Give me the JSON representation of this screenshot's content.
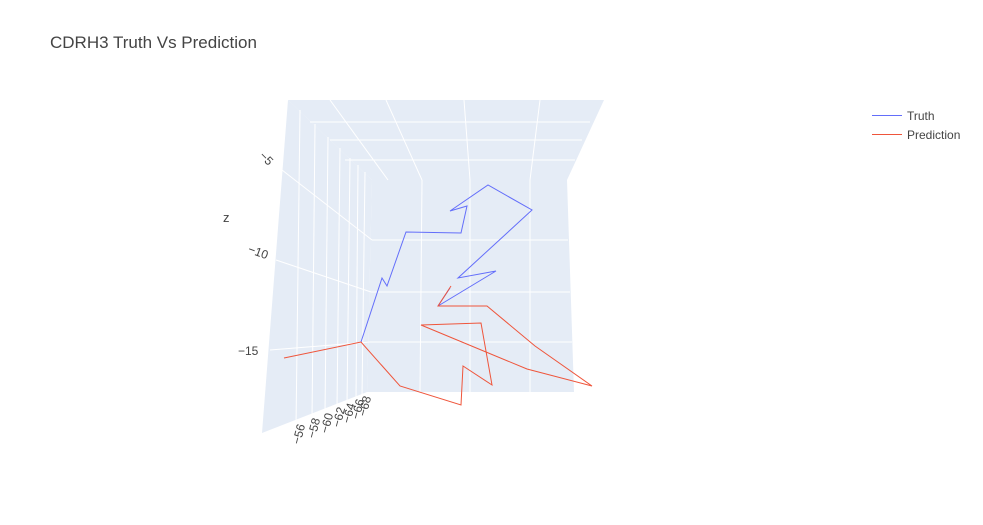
{
  "title": "CDRH3 Truth Vs Prediction",
  "chart_data": {
    "type": "line3d",
    "title": "CDRH3 Truth Vs Prediction",
    "zlabel": "z",
    "z_ticks": [
      "−5",
      "−10",
      "−15"
    ],
    "y_ticks": [
      "−56",
      "−58",
      "−60",
      "−62",
      "−64",
      "−66",
      "−68"
    ],
    "legend_position": "top-right",
    "series": [
      {
        "name": "Truth",
        "color": "#636efa",
        "points": [
          [
            488,
            185
          ],
          [
            532,
            210
          ],
          [
            458,
            278
          ],
          [
            496,
            271
          ],
          [
            438,
            306
          ],
          [
            450,
            288
          ]
        ],
        "start_points": [
          [
            361,
            342
          ],
          [
            382,
            278
          ],
          [
            387,
            286
          ],
          [
            406,
            232
          ],
          [
            461,
            233
          ],
          [
            467,
            206
          ],
          [
            450,
            211
          ],
          [
            488,
            185
          ]
        ]
      },
      {
        "name": "Prediction",
        "color": "#ef553b",
        "points": [
          [
            284,
            358
          ],
          [
            361,
            342
          ],
          [
            400,
            386
          ],
          [
            461,
            405
          ],
          [
            463,
            366
          ],
          [
            492,
            385
          ],
          [
            481,
            323
          ],
          [
            421,
            325
          ],
          [
            527,
            369
          ],
          [
            592,
            386
          ],
          [
            535,
            346
          ],
          [
            487,
            306
          ],
          [
            438,
            306
          ],
          [
            451,
            286
          ]
        ]
      }
    ]
  }
}
